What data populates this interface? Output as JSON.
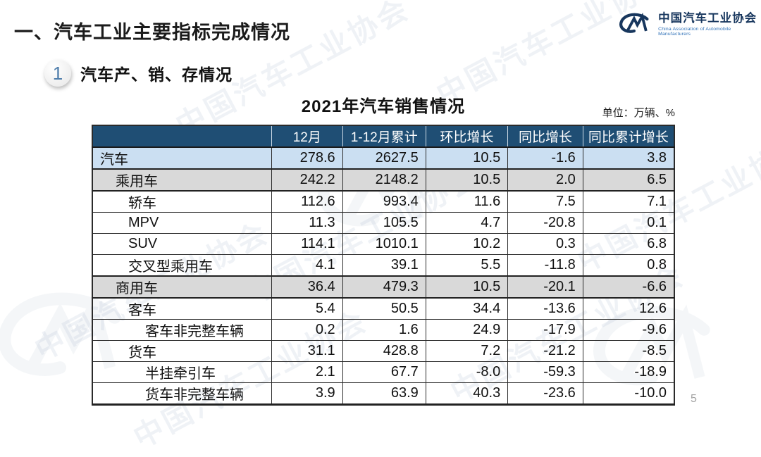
{
  "page": {
    "heading": "一、汽车工业主要指标完成情况",
    "page_number": "5"
  },
  "logo": {
    "monogram": "CM",
    "name_cn": "中国汽车工业协会",
    "name_en": "China Association of Automobile Manufacturers",
    "color": "#17365d"
  },
  "section": {
    "number": "1",
    "label": "汽车产、销、存情况"
  },
  "table": {
    "title": "2021年汽车销售情况",
    "unit_note": "单位：万辆、%",
    "columns": [
      "",
      "12月",
      "1-12月累计",
      "环比增长",
      "同比增长",
      "同比累计增长"
    ],
    "rows": [
      {
        "label": "汽车",
        "level": 0,
        "style": "blue",
        "thick_bottom": true,
        "values": [
          "278.6",
          "2627.5",
          "10.5",
          "-1.6",
          "3.8"
        ]
      },
      {
        "label": "乘用车",
        "level": 1,
        "style": "gray",
        "thick_bottom": true,
        "values": [
          "242.2",
          "2148.2",
          "10.5",
          "2.0",
          "6.5"
        ]
      },
      {
        "label": "轿车",
        "level": 2,
        "style": "white",
        "thick_bottom": false,
        "values": [
          "112.6",
          "993.4",
          "11.6",
          "7.5",
          "7.1"
        ]
      },
      {
        "label": "MPV",
        "level": 2,
        "style": "white",
        "thick_bottom": false,
        "values": [
          "11.3",
          "105.5",
          "4.7",
          "-20.8",
          "0.1"
        ]
      },
      {
        "label": "SUV",
        "level": 2,
        "style": "white",
        "thick_bottom": false,
        "values": [
          "114.1",
          "1010.1",
          "10.2",
          "0.3",
          "6.8"
        ]
      },
      {
        "label": "交叉型乘用车",
        "level": 2,
        "style": "white",
        "thick_bottom": true,
        "values": [
          "4.1",
          "39.1",
          "5.5",
          "-11.8",
          "0.8"
        ]
      },
      {
        "label": "商用车",
        "level": 1,
        "style": "gray",
        "thick_bottom": true,
        "values": [
          "36.4",
          "479.3",
          "10.5",
          "-20.1",
          "-6.6"
        ]
      },
      {
        "label": "客车",
        "level": 2,
        "style": "white",
        "thick_bottom": false,
        "values": [
          "5.4",
          "50.5",
          "34.4",
          "-13.6",
          "12.6"
        ]
      },
      {
        "label": "客车非完整车辆",
        "level": 3,
        "style": "white",
        "thick_bottom": false,
        "values": [
          "0.2",
          "1.6",
          "24.9",
          "-17.9",
          "-9.6"
        ]
      },
      {
        "label": "货车",
        "level": 2,
        "style": "white",
        "thick_bottom": false,
        "values": [
          "31.1",
          "428.8",
          "7.2",
          "-21.2",
          "-8.5"
        ]
      },
      {
        "label": "半挂牵引车",
        "level": 3,
        "style": "white",
        "thick_bottom": false,
        "values": [
          "2.1",
          "67.7",
          "-8.0",
          "-59.3",
          "-18.9"
        ]
      },
      {
        "label": "货车非完整车辆",
        "level": 3,
        "style": "white",
        "thick_bottom": false,
        "values": [
          "3.9",
          "63.9",
          "40.3",
          "-23.6",
          "-10.0"
        ]
      }
    ],
    "colors": {
      "header_bg": "#1f4e74",
      "header_text": "#ffffff",
      "row_highlight_blue": "#cbdff2",
      "row_highlight_gray": "#d9d9d9",
      "border": "#2b2b2b"
    }
  },
  "watermark": {
    "text": "中国汽车工业协会"
  }
}
